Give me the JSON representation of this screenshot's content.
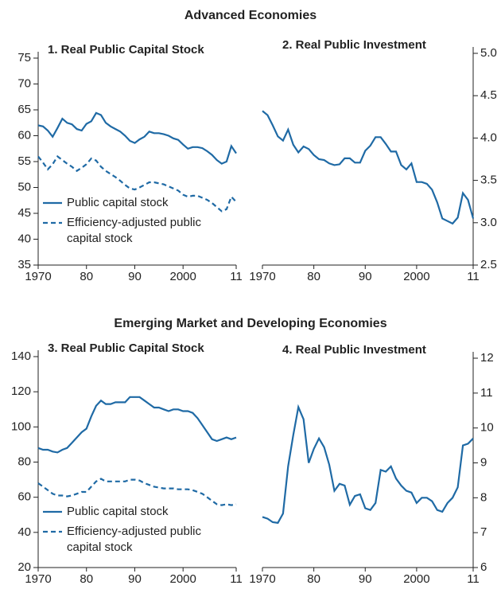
{
  "headings": [
    "Advanced Economies",
    "Emerging Market and Developing Economies"
  ],
  "chart_data": [
    {
      "type": "line",
      "title": "1. Real Public Capital Stock",
      "yaxis_position": "left",
      "legend": "lower left",
      "x": [
        1970,
        1971,
        1972,
        1973,
        1974,
        1975,
        1976,
        1977,
        1978,
        1979,
        1980,
        1981,
        1982,
        1983,
        1984,
        1985,
        1986,
        1987,
        1988,
        1989,
        1990,
        1991,
        1992,
        1993,
        1994,
        1995,
        1996,
        1997,
        1998,
        1999,
        2000,
        2001,
        2002,
        2003,
        2004,
        2005,
        2006,
        2007,
        2008,
        2009,
        2010,
        2011
      ],
      "xlim": [
        1970,
        2011
      ],
      "xticks": [
        1970,
        {
          "value": 1980,
          "label": "80"
        },
        {
          "value": 1990,
          "label": "90"
        },
        2000,
        {
          "value": 2011,
          "label": "11"
        }
      ],
      "ylim": [
        35,
        75
      ],
      "yticks": [
        35,
        40,
        45,
        50,
        55,
        60,
        65,
        70,
        75
      ],
      "series": [
        {
          "name": "Public capital stock",
          "color": "#1f6aa5",
          "style": "solid",
          "values": [
            62,
            61.8,
            61,
            59.8,
            61.5,
            63.3,
            62.5,
            62.2,
            61.3,
            61,
            62.3,
            62.8,
            64.4,
            64,
            62.5,
            61.8,
            61.3,
            60.8,
            60,
            59,
            58.6,
            59.3,
            59.8,
            60.8,
            60.5,
            60.5,
            60.3,
            60,
            59.5,
            59.2,
            58.3,
            57.5,
            57.8,
            57.8,
            57.6,
            57,
            56.3,
            55.3,
            54.6,
            55,
            58,
            56.6
          ]
        },
        {
          "name": "Efficiency-adjusted public capital stock",
          "color": "#1f6aa5",
          "style": "dashed",
          "values": [
            56,
            54.8,
            53.5,
            54.5,
            56,
            55.3,
            54.6,
            54,
            53.2,
            53.8,
            54.5,
            55.6,
            55.2,
            54,
            53.2,
            52.6,
            52,
            51.3,
            50.5,
            49.8,
            49.6,
            50,
            50.5,
            51,
            51,
            50.8,
            50.6,
            50.2,
            49.8,
            49.4,
            48.6,
            48.2,
            48.4,
            48.4,
            48,
            47.6,
            47,
            46.2,
            45.4,
            45.8,
            48.2,
            47.2
          ]
        }
      ]
    },
    {
      "type": "line",
      "title": "2. Real Public Investment",
      "yaxis_position": "right",
      "x": [
        1970,
        1971,
        1972,
        1973,
        1974,
        1975,
        1976,
        1977,
        1978,
        1979,
        1980,
        1981,
        1982,
        1983,
        1984,
        1985,
        1986,
        1987,
        1988,
        1989,
        1990,
        1991,
        1992,
        1993,
        1994,
        1995,
        1996,
        1997,
        1998,
        1999,
        2000,
        2001,
        2002,
        2003,
        2004,
        2005,
        2006,
        2007,
        2008,
        2009,
        2010,
        2011
      ],
      "xlim": [
        1970,
        2011
      ],
      "xticks": [
        1970,
        {
          "value": 1980,
          "label": "80"
        },
        {
          "value": 1990,
          "label": "90"
        },
        2000,
        {
          "value": 2011,
          "label": "11"
        }
      ],
      "ylim": [
        2.5,
        5
      ],
      "yticks": [
        2.5,
        {
          "value": 3,
          "label": "3.0"
        },
        3.5,
        {
          "value": 4,
          "label": "4.0"
        },
        4.5,
        {
          "value": 5,
          "label": "5.0"
        }
      ],
      "series": [
        {
          "color": "#1f6aa5",
          "style": "solid",
          "values": [
            4.32,
            4.27,
            4.15,
            4.02,
            3.97,
            4.1,
            3.92,
            3.83,
            3.9,
            3.87,
            3.8,
            3.75,
            3.74,
            3.7,
            3.68,
            3.69,
            3.76,
            3.76,
            3.71,
            3.71,
            3.85,
            3.91,
            4.01,
            4.01,
            3.93,
            3.84,
            3.84,
            3.68,
            3.63,
            3.7,
            3.48,
            3.48,
            3.46,
            3.39,
            3.24,
            3.05,
            3.02,
            2.99,
            3.06,
            3.35,
            3.27,
            3.05
          ]
        }
      ]
    },
    {
      "type": "line",
      "title": "3. Real Public Capital Stock",
      "yaxis_position": "left",
      "legend": "lower left",
      "x": [
        1970,
        1971,
        1972,
        1973,
        1974,
        1975,
        1976,
        1977,
        1978,
        1979,
        1980,
        1981,
        1982,
        1983,
        1984,
        1985,
        1986,
        1987,
        1988,
        1989,
        1990,
        1991,
        1992,
        1993,
        1994,
        1995,
        1996,
        1997,
        1998,
        1999,
        2000,
        2001,
        2002,
        2003,
        2004,
        2005,
        2006,
        2007,
        2008,
        2009,
        2010,
        2011
      ],
      "xlim": [
        1970,
        2011
      ],
      "xticks": [
        1970,
        {
          "value": 1980,
          "label": "80"
        },
        {
          "value": 1990,
          "label": "90"
        },
        2000,
        {
          "value": 2011,
          "label": "11"
        }
      ],
      "ylim": [
        20,
        140
      ],
      "yticks": [
        20,
        40,
        60,
        80,
        100,
        120,
        140
      ],
      "series": [
        {
          "name": "Public capital stock",
          "color": "#1f6aa5",
          "style": "solid",
          "values": [
            88,
            87,
            87,
            86,
            85.5,
            87,
            88,
            91,
            94,
            97,
            99,
            106,
            112,
            115,
            113,
            113,
            114,
            114,
            114,
            117,
            117,
            117,
            115,
            113,
            111,
            111,
            110,
            109,
            110,
            110,
            109,
            109,
            108,
            105,
            101,
            97,
            93,
            92,
            93,
            94,
            93,
            94
          ]
        },
        {
          "name": "Efficiency-adjusted public capital stock",
          "color": "#1f6aa5",
          "style": "dashed",
          "values": [
            68,
            66,
            64,
            62,
            61,
            61,
            60.5,
            61,
            62,
            63,
            63,
            66,
            69,
            70.5,
            69,
            69,
            69,
            69,
            69,
            70,
            70,
            69.5,
            68,
            67,
            66,
            65.5,
            65,
            65,
            65,
            64.5,
            64.5,
            64.5,
            64,
            63,
            62,
            60,
            58,
            56,
            55.5,
            56,
            55.5,
            56
          ]
        }
      ]
    },
    {
      "type": "line",
      "title": "4. Real Public Investment",
      "yaxis_position": "right",
      "x": [
        1970,
        1971,
        1972,
        1973,
        1974,
        1975,
        1976,
        1977,
        1978,
        1979,
        1980,
        1981,
        1982,
        1983,
        1984,
        1985,
        1986,
        1987,
        1988,
        1989,
        1990,
        1991,
        1992,
        1993,
        1994,
        1995,
        1996,
        1997,
        1998,
        1999,
        2000,
        2001,
        2002,
        2003,
        2004,
        2005,
        2006,
        2007,
        2008,
        2009,
        2010,
        2011
      ],
      "xlim": [
        1970,
        2011
      ],
      "xticks": [
        1970,
        {
          "value": 1980,
          "label": "80"
        },
        {
          "value": 1990,
          "label": "90"
        },
        2000,
        {
          "value": 2011,
          "label": "11"
        }
      ],
      "ylim": [
        6,
        12
      ],
      "yticks": [
        6,
        7,
        8,
        9,
        10,
        11,
        12
      ],
      "series": [
        {
          "color": "#1f6aa5",
          "style": "solid",
          "values": [
            7.45,
            7.4,
            7.3,
            7.28,
            7.55,
            8.9,
            9.8,
            10.6,
            10.25,
            9,
            9.4,
            9.7,
            9.45,
            8.95,
            8.2,
            8.4,
            8.35,
            7.8,
            8.05,
            8.1,
            7.7,
            7.65,
            7.85,
            8.8,
            8.75,
            8.9,
            8.55,
            8.35,
            8.2,
            8.15,
            7.85,
            8,
            8,
            7.9,
            7.65,
            7.6,
            7.85,
            8,
            8.3,
            9.5,
            9.55,
            9.7
          ]
        }
      ]
    }
  ]
}
